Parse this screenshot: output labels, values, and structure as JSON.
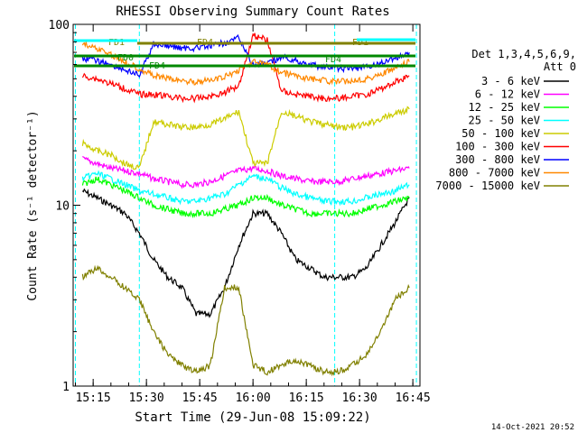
{
  "chart_data": {
    "type": "line",
    "title": "RHESSI Observing Summary Count Rates",
    "xlabel": "Start Time (29-Jun-08 15:09:22)",
    "ylabel": "Count Rate (s⁻¹ detector⁻¹)",
    "yscale": "log",
    "ylim": [
      1,
      100
    ],
    "xlim": [
      "15:09:22",
      "16:47:00"
    ],
    "x_ticks": [
      "15:15",
      "15:30",
      "15:45",
      "16:00",
      "16:15",
      "16:30",
      "16:45"
    ],
    "y_ticks": [
      "1",
      "10",
      "100"
    ],
    "grid": false,
    "legend_title": "Det 1,3,4,5,6,9,\n Att 0",
    "legend_position": "right",
    "series": [
      {
        "name": "3 - 6 keV",
        "color": "#000000",
        "x": [
          "15:12",
          "15:16",
          "15:20",
          "15:24",
          "15:28",
          "15:32",
          "15:36",
          "15:40",
          "15:44",
          "15:48",
          "15:52",
          "15:56",
          "16:00",
          "16:04",
          "16:08",
          "16:12",
          "16:16",
          "16:20",
          "16:24",
          "16:28",
          "16:32",
          "16:36",
          "16:40",
          "16:44"
        ],
        "y": [
          12,
          11,
          10,
          9,
          7,
          5,
          4,
          3.5,
          2.5,
          2.5,
          3.5,
          6,
          9,
          9,
          7,
          5,
          4.5,
          4,
          4,
          4,
          4.5,
          6,
          8,
          11
        ]
      },
      {
        "name": "6 - 12 keV",
        "color": "#ff00ff",
        "x": [
          "15:12",
          "15:16",
          "15:20",
          "15:24",
          "15:28",
          "15:32",
          "15:36",
          "15:40",
          "15:44",
          "15:48",
          "15:52",
          "15:56",
          "16:00",
          "16:04",
          "16:08",
          "16:12",
          "16:16",
          "16:20",
          "16:24",
          "16:28",
          "16:32",
          "16:36",
          "16:40",
          "16:44"
        ],
        "y": [
          18,
          17,
          16,
          15.5,
          15,
          14,
          13.5,
          13,
          13,
          13.5,
          14.5,
          15.5,
          16,
          15.5,
          14.5,
          14,
          13.5,
          13.5,
          13.5,
          14,
          14.5,
          15,
          15.5,
          16
        ]
      },
      {
        "name": "12 - 25 keV",
        "color": "#00ff00",
        "x": [
          "15:12",
          "15:16",
          "15:20",
          "15:24",
          "15:28",
          "15:32",
          "15:36",
          "15:40",
          "15:44",
          "15:48",
          "15:52",
          "15:56",
          "16:00",
          "16:04",
          "16:08",
          "16:12",
          "16:16",
          "16:20",
          "16:24",
          "16:28",
          "16:32",
          "16:36",
          "16:40",
          "16:44"
        ],
        "y": [
          13,
          14,
          13,
          12,
          11,
          10,
          9.5,
          9,
          9,
          9,
          9.5,
          10,
          11,
          11,
          10,
          9.5,
          9,
          9,
          9,
          9,
          9.5,
          10,
          10.5,
          11
        ]
      },
      {
        "name": "25 - 50 keV",
        "color": "#00ffff",
        "x": [
          "15:12",
          "15:16",
          "15:20",
          "15:24",
          "15:28",
          "15:32",
          "15:36",
          "15:40",
          "15:44",
          "15:48",
          "15:52",
          "15:56",
          "16:00",
          "16:04",
          "16:08",
          "16:12",
          "16:16",
          "16:20",
          "16:24",
          "16:28",
          "16:32",
          "16:36",
          "16:40",
          "16:44"
        ],
        "y": [
          14,
          15,
          14,
          13,
          12,
          11.5,
          11,
          10.5,
          10.5,
          11,
          11.5,
          13,
          14.5,
          14,
          12.5,
          11.5,
          11,
          10.5,
          10.5,
          10.5,
          11,
          11.5,
          12,
          13
        ]
      },
      {
        "name": "50 - 100 keV",
        "color": "#cccc00",
        "x": [
          "15:12",
          "15:16",
          "15:20",
          "15:24",
          "15:28",
          "15:32",
          "15:36",
          "15:40",
          "15:44",
          "15:48",
          "15:52",
          "15:56",
          "16:00",
          "16:04",
          "16:08",
          "16:12",
          "16:16",
          "16:20",
          "16:24",
          "16:28",
          "16:32",
          "16:36",
          "16:40",
          "16:44"
        ],
        "y": [
          22,
          20,
          19,
          17,
          16,
          29,
          28,
          27,
          27,
          28,
          30,
          33,
          17,
          17,
          33,
          31,
          29,
          28,
          27,
          27,
          28,
          30,
          32,
          34
        ]
      },
      {
        "name": "100 - 300 keV",
        "color": "#ff0000",
        "x": [
          "15:12",
          "15:16",
          "15:20",
          "15:24",
          "15:28",
          "15:32",
          "15:36",
          "15:40",
          "15:44",
          "15:48",
          "15:52",
          "15:56",
          "16:00",
          "16:04",
          "16:08",
          "16:12",
          "16:16",
          "16:20",
          "16:24",
          "16:28",
          "16:32",
          "16:36",
          "16:40",
          "16:44"
        ],
        "y": [
          52,
          50,
          47,
          44,
          41,
          41,
          40,
          39,
          39,
          40,
          42,
          46,
          87,
          82,
          43,
          41,
          40,
          39,
          39,
          40,
          41,
          44,
          48,
          52
        ]
      },
      {
        "name": "300 - 800 keV",
        "color": "#0000ff",
        "x": [
          "15:12",
          "15:16",
          "15:20",
          "15:24",
          "15:28",
          "15:32",
          "15:36",
          "15:40",
          "15:44",
          "15:48",
          "15:52",
          "15:56",
          "16:00",
          "16:04",
          "16:08",
          "16:12",
          "16:16",
          "16:20",
          "16:24",
          "16:28",
          "16:32",
          "16:36",
          "16:40",
          "16:44"
        ],
        "y": [
          65,
          63,
          60,
          56,
          52,
          78,
          76,
          74,
          74,
          76,
          79,
          84,
          60,
          60,
          66,
          63,
          60,
          58,
          57,
          57,
          58,
          61,
          65,
          70
        ]
      },
      {
        "name": "800 - 7000 keV",
        "color": "#ff8800",
        "x": [
          "15:12",
          "15:16",
          "15:20",
          "15:24",
          "15:28",
          "15:32",
          "15:36",
          "15:40",
          "15:44",
          "15:48",
          "15:52",
          "15:56",
          "16:00",
          "16:04",
          "16:08",
          "16:12",
          "16:16",
          "16:20",
          "16:24",
          "16:28",
          "16:32",
          "16:36",
          "16:40",
          "16:44"
        ],
        "y": [
          78,
          74,
          68,
          62,
          57,
          52,
          50,
          49,
          48,
          49,
          51,
          56,
          62,
          60,
          54,
          52,
          50,
          49,
          48,
          49,
          50,
          53,
          57,
          62
        ]
      },
      {
        "name": "7000 - 15000 keV",
        "color": "#808000",
        "x": [
          "15:12",
          "15:16",
          "15:20",
          "15:24",
          "15:28",
          "15:32",
          "15:36",
          "15:40",
          "15:44",
          "15:48",
          "15:52",
          "15:56",
          "16:00",
          "16:04",
          "16:08",
          "16:12",
          "16:16",
          "16:20",
          "16:24",
          "16:28",
          "16:32",
          "16:36",
          "16:40",
          "16:44"
        ],
        "y": [
          4,
          4.5,
          4,
          3.5,
          3,
          2,
          1.5,
          1.3,
          1.2,
          1.3,
          3.5,
          3.5,
          1.3,
          1.2,
          1.3,
          1.4,
          1.3,
          1.2,
          1.2,
          1.3,
          1.5,
          2,
          3,
          3.5
        ]
      }
    ],
    "overlay_labels": [
      {
        "text": "FD1",
        "color": "#808000"
      },
      {
        "text": "FD4",
        "color": "#808000"
      },
      {
        "text": "FD0",
        "color": "#008800"
      },
      {
        "text": "FD4",
        "color": "#008800"
      },
      {
        "text": "FD1",
        "color": "#808000"
      },
      {
        "text": "FD4",
        "color": "#008800"
      }
    ],
    "vertical_markers": {
      "color": "#00ffff",
      "x": [
        "15:10",
        "15:28",
        "16:23",
        "16:46"
      ]
    },
    "footer_date": "14-Oct-2021 20:52"
  }
}
